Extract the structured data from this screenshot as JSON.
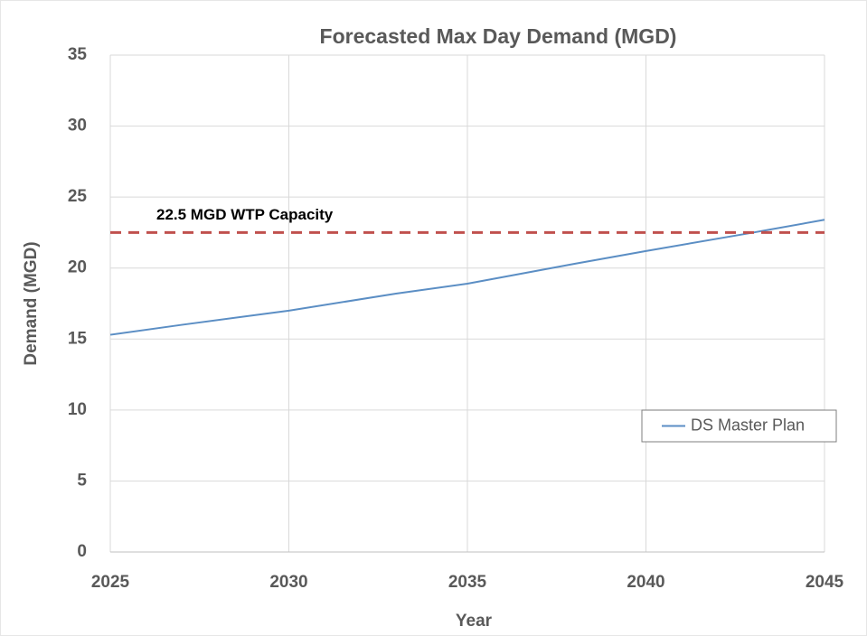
{
  "chart_data": {
    "type": "line",
    "title": "Forecasted Max Day Demand (MGD)",
    "x_label": "Year",
    "y_label": "Demand (MGD)",
    "x": [
      2025,
      2027,
      2030,
      2033,
      2035,
      2038,
      2040,
      2043,
      2045
    ],
    "series": [
      {
        "name": "DS Master Plan",
        "color": "#5b8ec4",
        "values": [
          15.3,
          16.0,
          17.0,
          18.2,
          18.9,
          20.3,
          21.2,
          22.5,
          23.4
        ]
      }
    ],
    "reference_line": {
      "value": 22.5,
      "label": "22.5 MGD WTP Capacity",
      "color": "#c0504d"
    },
    "xlim": [
      2025,
      2045
    ],
    "xticks": [
      2025,
      2030,
      2035,
      2040,
      2045
    ],
    "ylim": [
      0,
      35
    ],
    "yticks": [
      0,
      5,
      10,
      15,
      20,
      25,
      30,
      35
    ],
    "grid": true,
    "legend": "right"
  }
}
